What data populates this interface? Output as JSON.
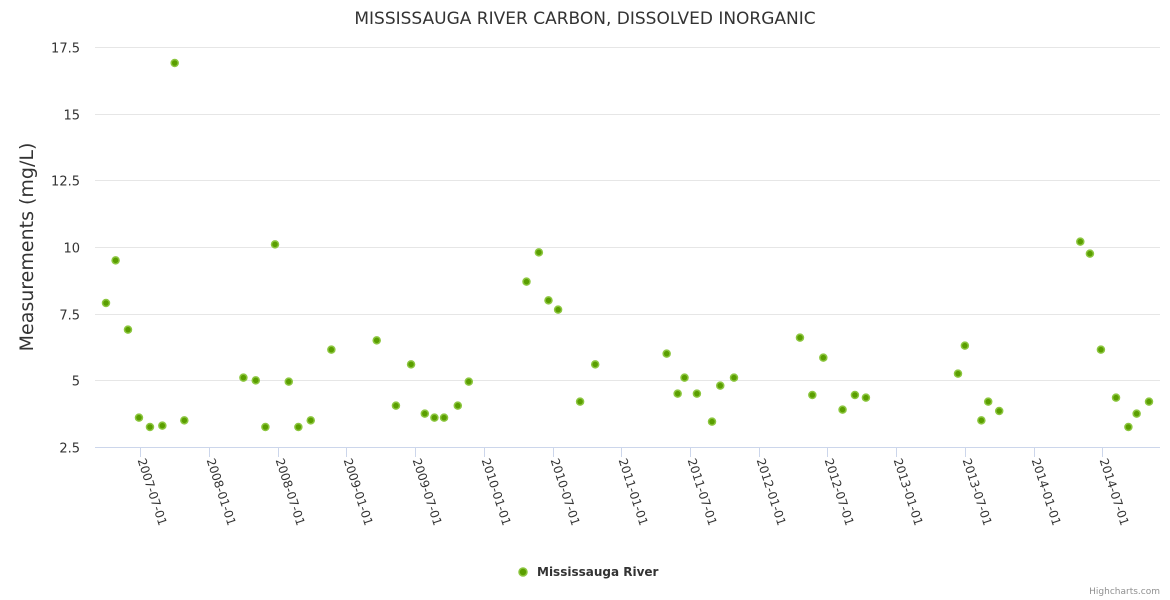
{
  "chart_data": {
    "type": "scatter",
    "title": "MISSISSAUGA RIVER CARBON, DISSOLVED INORGANIC",
    "xlabel": "",
    "ylabel": "Measurements (mg/L)",
    "x_units": "decimal year",
    "xlim": [
      2007.17,
      2014.92
    ],
    "ylim": [
      2.5,
      17.5
    ],
    "yticks": [
      2.5,
      5,
      7.5,
      10,
      12.5,
      15,
      17.5
    ],
    "ytick_labels": [
      "2.5",
      "5",
      "7.5",
      "10",
      "12.5",
      "15",
      "17.5"
    ],
    "xticks": [
      2007.5,
      2008.0,
      2008.5,
      2009.0,
      2009.5,
      2010.0,
      2010.5,
      2011.0,
      2011.5,
      2012.0,
      2012.5,
      2013.0,
      2013.5,
      2014.0,
      2014.5
    ],
    "xtick_labels": [
      "2007-07-01",
      "2008-01-01",
      "2008-07-01",
      "2009-01-01",
      "2009-07-01",
      "2010-01-01",
      "2010-07-01",
      "2011-01-01",
      "2011-07-01",
      "2012-01-01",
      "2012-07-01",
      "2013-01-01",
      "2013-07-01",
      "2014-01-01",
      "2014-07-01"
    ],
    "grid": true,
    "legend_position": "bottom-center",
    "series": [
      {
        "name": "Mississauga River",
        "color": "#5a9e00",
        "outline": "#8cc63f",
        "x": [
          2007.25,
          2007.32,
          2007.41,
          2007.49,
          2007.57,
          2007.66,
          2007.75,
          2007.82,
          2008.25,
          2008.34,
          2008.41,
          2008.48,
          2008.58,
          2008.65,
          2008.74,
          2008.89,
          2009.22,
          2009.36,
          2009.47,
          2009.57,
          2009.64,
          2009.71,
          2009.81,
          2009.89,
          2010.31,
          2010.4,
          2010.47,
          2010.54,
          2010.7,
          2010.81,
          2011.33,
          2011.41,
          2011.46,
          2011.55,
          2011.66,
          2011.72,
          2011.82,
          2012.3,
          2012.39,
          2012.47,
          2012.61,
          2012.7,
          2012.78,
          2013.45,
          2013.5,
          2013.62,
          2013.67,
          2013.75,
          2014.34,
          2014.41,
          2014.49,
          2014.6,
          2014.69,
          2014.75,
          2014.84
        ],
        "y": [
          7.9,
          9.5,
          6.9,
          3.6,
          3.25,
          3.3,
          16.9,
          3.5,
          5.1,
          5.0,
          3.25,
          10.1,
          4.95,
          3.25,
          3.5,
          6.15,
          6.5,
          4.05,
          5.6,
          3.75,
          3.6,
          3.6,
          4.05,
          4.95,
          8.7,
          9.8,
          8.0,
          7.65,
          4.2,
          5.6,
          6.0,
          4.5,
          5.1,
          4.5,
          3.45,
          4.8,
          5.1,
          6.6,
          4.45,
          5.85,
          3.9,
          4.45,
          4.35,
          5.25,
          6.3,
          3.5,
          4.2,
          3.85,
          10.2,
          9.75,
          6.15,
          4.35,
          3.25,
          3.75,
          4.2
        ]
      }
    ]
  },
  "credits": "Highcharts.com"
}
